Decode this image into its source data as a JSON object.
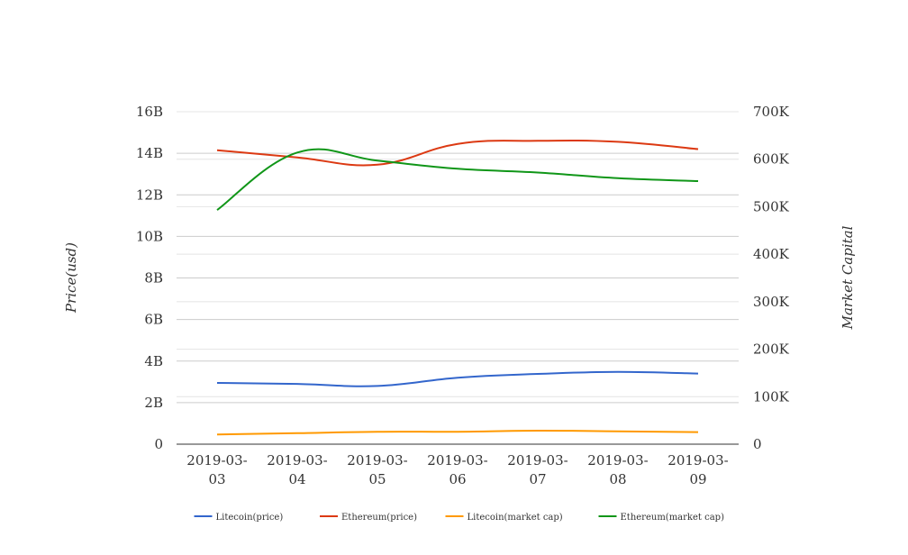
{
  "chart_data": {
    "type": "line",
    "categories": [
      "2019-03-03",
      "2019-03-04",
      "2019-03-05",
      "2019-03-06",
      "2019-03-07",
      "2019-03-08",
      "2019-03-09"
    ],
    "y_left": {
      "label": "Price(usd)",
      "range": [
        0,
        16000000000
      ],
      "ticks": [
        0,
        2000000000,
        4000000000,
        6000000000,
        8000000000,
        10000000000,
        12000000000,
        14000000000,
        16000000000
      ],
      "tick_labels": [
        "0",
        "2B",
        "4B",
        "6B",
        "8B",
        "10B",
        "12B",
        "14B",
        "16B"
      ]
    },
    "y_right": {
      "label": "Market Capital",
      "range": [
        0,
        700000
      ],
      "ticks": [
        0,
        100000,
        200000,
        300000,
        400000,
        500000,
        600000,
        700000
      ],
      "tick_labels": [
        "0",
        "100K",
        "200K",
        "300K",
        "400K",
        "500K",
        "600K",
        "700K"
      ]
    },
    "grid": true,
    "legend_position": "bottom",
    "series": [
      {
        "name": "Litecoin(price)",
        "axis": "left",
        "color": "#3366cc",
        "values": [
          2950000000,
          2900000000,
          2800000000,
          3200000000,
          3380000000,
          3480000000,
          3400000000
        ]
      },
      {
        "name": "Ethereum(price)",
        "axis": "left",
        "color": "#dc3912",
        "values": [
          14150000000,
          13800000000,
          13450000000,
          14450000000,
          14600000000,
          14550000000,
          14200000000
        ]
      },
      {
        "name": "Litecoin(market cap)",
        "axis": "left",
        "color": "#ff9900",
        "values": [
          470000000,
          530000000,
          600000000,
          600000000,
          650000000,
          620000000,
          580000000
        ]
      },
      {
        "name": "Ethereum(market cap)",
        "axis": "right",
        "color": "#109618",
        "values": [
          493000,
          614000,
          597000,
          580000,
          572000,
          560000,
          554000
        ]
      }
    ]
  }
}
